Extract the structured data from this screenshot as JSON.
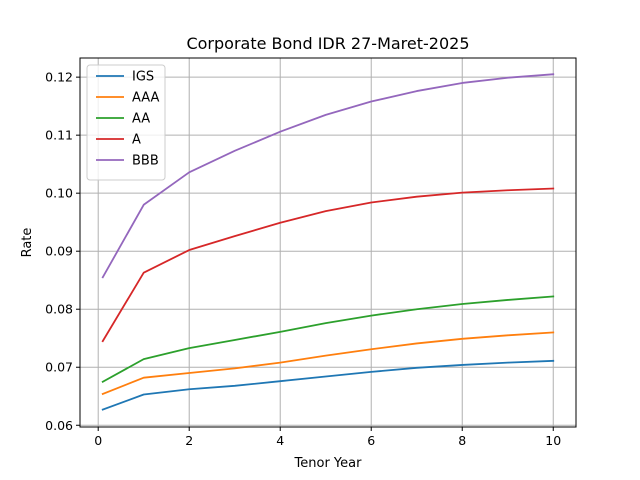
{
  "chart_data": {
    "type": "line",
    "title": "Corporate Bond IDR 27-Maret-2025",
    "xlabel": "Tenor Year",
    "ylabel": "Rate",
    "xlim": [
      -0.4,
      10.5
    ],
    "ylim": [
      0.0597,
      0.1233
    ],
    "xticks": [
      0,
      2,
      4,
      6,
      8,
      10
    ],
    "yticks": [
      0.06,
      0.07,
      0.08,
      0.09,
      0.1,
      0.11,
      0.12
    ],
    "ytick_labels": [
      "0.06",
      "0.07",
      "0.08",
      "0.09",
      "0.10",
      "0.11",
      "0.12"
    ],
    "grid": true,
    "legend": "top-left",
    "x": [
      0.1,
      1,
      2,
      3,
      4,
      5,
      6,
      7,
      8,
      9,
      10
    ],
    "series": [
      {
        "name": "IGS",
        "color": "#1f77b4",
        "values": [
          0.0627,
          0.0653,
          0.0662,
          0.0668,
          0.0676,
          0.0684,
          0.0692,
          0.0699,
          0.0704,
          0.0708,
          0.0711
        ]
      },
      {
        "name": "AAA",
        "color": "#ff7f0e",
        "values": [
          0.0654,
          0.0682,
          0.069,
          0.0698,
          0.0708,
          0.072,
          0.0731,
          0.0741,
          0.0749,
          0.0755,
          0.076
        ]
      },
      {
        "name": "AA",
        "color": "#2ca02c",
        "values": [
          0.0675,
          0.0714,
          0.0733,
          0.0747,
          0.0761,
          0.0776,
          0.0789,
          0.08,
          0.0809,
          0.0816,
          0.0822
        ]
      },
      {
        "name": "A",
        "color": "#d62728",
        "values": [
          0.0745,
          0.0863,
          0.0902,
          0.0926,
          0.0949,
          0.0969,
          0.0984,
          0.0994,
          0.1001,
          0.1005,
          0.1008
        ]
      },
      {
        "name": "BBB",
        "color": "#9467bd",
        "values": [
          0.0855,
          0.098,
          0.1036,
          0.1073,
          0.1106,
          0.1135,
          0.1158,
          0.1176,
          0.119,
          0.1199,
          0.1205
        ]
      }
    ]
  }
}
